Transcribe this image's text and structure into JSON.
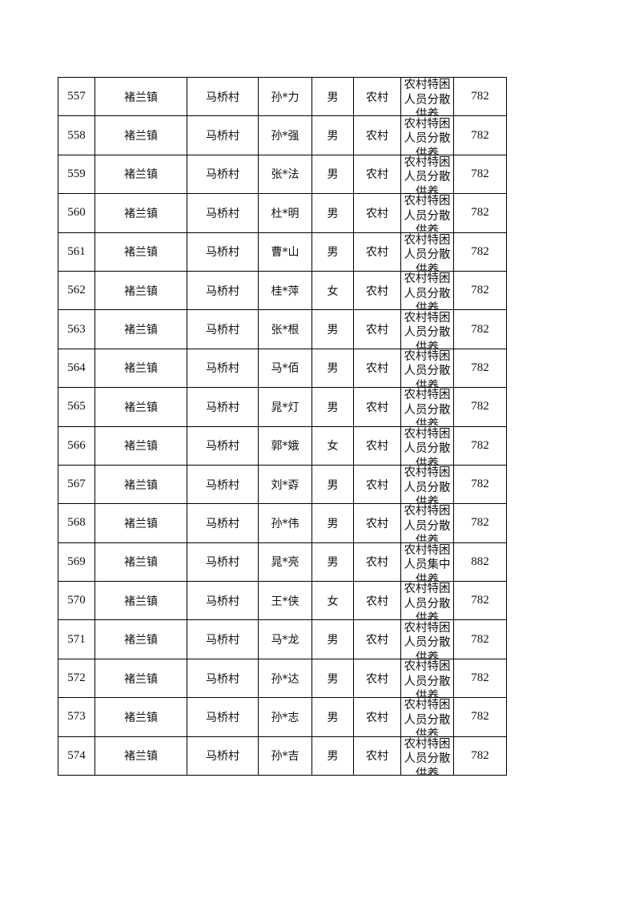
{
  "rows": [
    {
      "no": "557",
      "town": "褚兰镇",
      "village": "马桥村",
      "name": "孙*力",
      "sex": "男",
      "type": "农村",
      "category": "农村特困人员分散供养",
      "amount": "782"
    },
    {
      "no": "558",
      "town": "褚兰镇",
      "village": "马桥村",
      "name": "孙*强",
      "sex": "男",
      "type": "农村",
      "category": "农村特困人员分散供养",
      "amount": "782"
    },
    {
      "no": "559",
      "town": "褚兰镇",
      "village": "马桥村",
      "name": "张*法",
      "sex": "男",
      "type": "农村",
      "category": "农村特困人员分散供养",
      "amount": "782"
    },
    {
      "no": "560",
      "town": "褚兰镇",
      "village": "马桥村",
      "name": "杜*明",
      "sex": "男",
      "type": "农村",
      "category": "农村特困人员分散供养",
      "amount": "782"
    },
    {
      "no": "561",
      "town": "褚兰镇",
      "village": "马桥村",
      "name": "曹*山",
      "sex": "男",
      "type": "农村",
      "category": "农村特困人员分散供养",
      "amount": "782"
    },
    {
      "no": "562",
      "town": "褚兰镇",
      "village": "马桥村",
      "name": "桂*萍",
      "sex": "女",
      "type": "农村",
      "category": "农村特困人员分散供养",
      "amount": "782"
    },
    {
      "no": "563",
      "town": "褚兰镇",
      "village": "马桥村",
      "name": "张*根",
      "sex": "男",
      "type": "农村",
      "category": "农村特困人员分散供养",
      "amount": "782"
    },
    {
      "no": "564",
      "town": "褚兰镇",
      "village": "马桥村",
      "name": "马*佰",
      "sex": "男",
      "type": "农村",
      "category": "农村特困人员分散供养",
      "amount": "782"
    },
    {
      "no": "565",
      "town": "褚兰镇",
      "village": "马桥村",
      "name": "晁*灯",
      "sex": "男",
      "type": "农村",
      "category": "农村特困人员分散供养",
      "amount": "782"
    },
    {
      "no": "566",
      "town": "褚兰镇",
      "village": "马桥村",
      "name": "郭*娥",
      "sex": "女",
      "type": "农村",
      "category": "农村特困人员分散供养",
      "amount": "782"
    },
    {
      "no": "567",
      "town": "褚兰镇",
      "village": "马桥村",
      "name": "刘*孬",
      "sex": "男",
      "type": "农村",
      "category": "农村特困人员分散供养",
      "amount": "782"
    },
    {
      "no": "568",
      "town": "褚兰镇",
      "village": "马桥村",
      "name": "孙*伟",
      "sex": "男",
      "type": "农村",
      "category": "农村特困人员分散供养",
      "amount": "782"
    },
    {
      "no": "569",
      "town": "褚兰镇",
      "village": "马桥村",
      "name": "晁*亮",
      "sex": "男",
      "type": "农村",
      "category": "农村特困人员集中供养",
      "amount": "882"
    },
    {
      "no": "570",
      "town": "褚兰镇",
      "village": "马桥村",
      "name": "王*侠",
      "sex": "女",
      "type": "农村",
      "category": "农村特困人员分散供养",
      "amount": "782"
    },
    {
      "no": "571",
      "town": "褚兰镇",
      "village": "马桥村",
      "name": "马*龙",
      "sex": "男",
      "type": "农村",
      "category": "农村特困人员分散供养",
      "amount": "782"
    },
    {
      "no": "572",
      "town": "褚兰镇",
      "village": "马桥村",
      "name": "孙*达",
      "sex": "男",
      "type": "农村",
      "category": "农村特困人员分散供养",
      "amount": "782"
    },
    {
      "no": "573",
      "town": "褚兰镇",
      "village": "马桥村",
      "name": "孙*志",
      "sex": "男",
      "type": "农村",
      "category": "农村特困人员分散供养",
      "amount": "782"
    },
    {
      "no": "574",
      "town": "褚兰镇",
      "village": "马桥村",
      "name": "孙*吉",
      "sex": "男",
      "type": "农村",
      "category": "农村特困人员分散供养",
      "amount": "782"
    }
  ]
}
